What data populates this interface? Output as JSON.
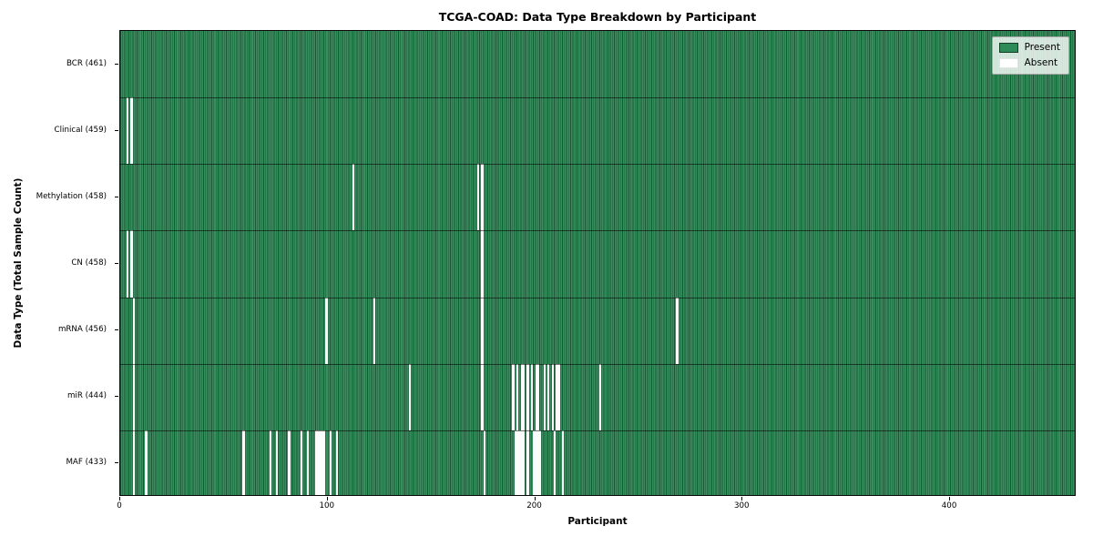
{
  "title": "TCGA-COAD: Data Type Breakdown by Participant",
  "x_axis_label": "Participant",
  "y_axis_label": "Data Type (Total Sample Count)",
  "legend": {
    "present_label": "Present",
    "absent_label": "Absent"
  },
  "colors": {
    "present": "#2E8B57",
    "absent": "#FFFFFF",
    "cell_edge": "rgba(0,0,0,0.38)",
    "row_separator": "rgba(0,0,0,0.55)",
    "frame": "#0a0a0a"
  },
  "chart_data": {
    "type": "heatmap",
    "title": "TCGA-COAD: Data Type Breakdown by Participant",
    "xlabel": "Participant",
    "ylabel": "Data Type (Total Sample Count)",
    "legend_entries": [
      "Present",
      "Absent"
    ],
    "legend_position": "upper right",
    "n_participants": 461,
    "x_ticks": [
      0,
      100,
      200,
      300,
      400
    ],
    "xlim": [
      0,
      461
    ],
    "cell_states": [
      "present",
      "absent"
    ],
    "rows": [
      {
        "name": "BCR",
        "label": "BCR (461)",
        "count": 461,
        "absent_participants": []
      },
      {
        "name": "Clinical",
        "label": "Clinical (459)",
        "count": 459,
        "absent_participants": [
          3,
          5
        ]
      },
      {
        "name": "Methylation",
        "label": "Methylation (458)",
        "count": 458,
        "absent_participants": [
          112,
          172,
          174
        ]
      },
      {
        "name": "CN",
        "label": "CN (458)",
        "count": 458,
        "absent_participants": [
          3,
          5,
          174
        ]
      },
      {
        "name": "mRNA",
        "label": "mRNA (456)",
        "count": 456,
        "absent_participants": [
          6,
          99,
          122,
          174,
          268
        ]
      },
      {
        "name": "miR",
        "label": "miR (444)",
        "count": 444,
        "absent_participants": [
          6,
          139,
          174,
          189,
          191,
          193,
          194,
          196,
          198,
          200,
          201,
          204,
          206,
          208,
          210,
          211,
          231
        ]
      },
      {
        "name": "MAF",
        "label": "MAF (433)",
        "count": 433,
        "absent_participants": [
          6,
          12,
          59,
          72,
          75,
          81,
          87,
          90,
          94,
          95,
          96,
          97,
          98,
          101,
          104,
          175,
          190,
          191,
          192,
          193,
          194,
          196,
          199,
          200,
          201,
          202,
          209,
          213
        ]
      }
    ]
  }
}
